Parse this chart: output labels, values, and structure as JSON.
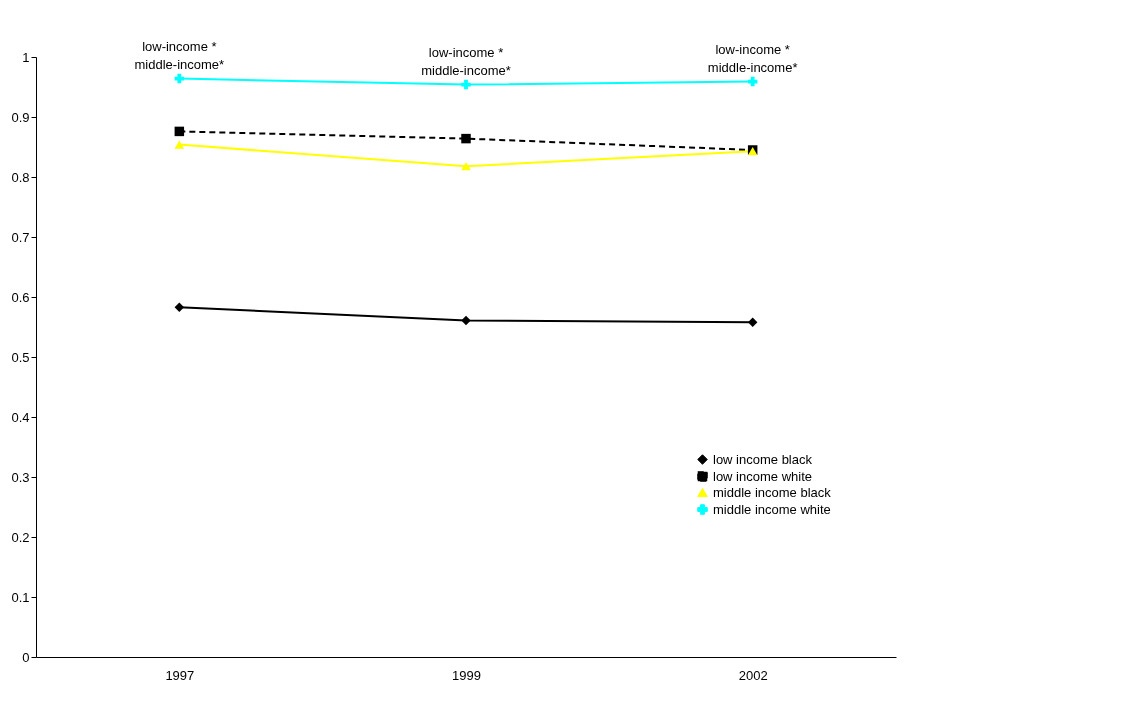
{
  "chart_data": {
    "type": "line",
    "categories": [
      "1997",
      "1999",
      "2002"
    ],
    "series": [
      {
        "name": "low income black",
        "color": "#000000",
        "values": [
          0.583,
          0.561,
          0.558
        ],
        "marker": "diamond",
        "line_style": "solid"
      },
      {
        "name": "low income white",
        "color": "#000000",
        "values": [
          0.876,
          0.864,
          0.845
        ],
        "marker": "square",
        "line_style": "dashed"
      },
      {
        "name": "middle income black",
        "color": "#ffff00",
        "values": [
          0.854,
          0.818,
          0.843
        ],
        "marker": "triangle",
        "line_style": "solid"
      },
      {
        "name": "middle income white",
        "color": "#00ffff",
        "values": [
          0.964,
          0.954,
          0.959
        ],
        "marker": "cross",
        "line_style": "solid"
      }
    ],
    "ylim": [
      0,
      1
    ],
    "yticks": [
      0,
      0.1,
      0.2,
      0.3,
      0.4,
      0.5,
      0.6,
      0.7,
      0.8,
      0.9,
      1
    ],
    "grid": false,
    "legend": "right",
    "annotations": [
      {
        "text": "low-income *\nmiddle-income*",
        "x": "1997",
        "y": 0.964
      },
      {
        "text": "low-income *\nmiddle-income*",
        "x": "1999",
        "y": 0.954
      },
      {
        "text": "low-income *\nmiddle-income*",
        "x": "2002",
        "y": 0.959
      }
    ]
  }
}
